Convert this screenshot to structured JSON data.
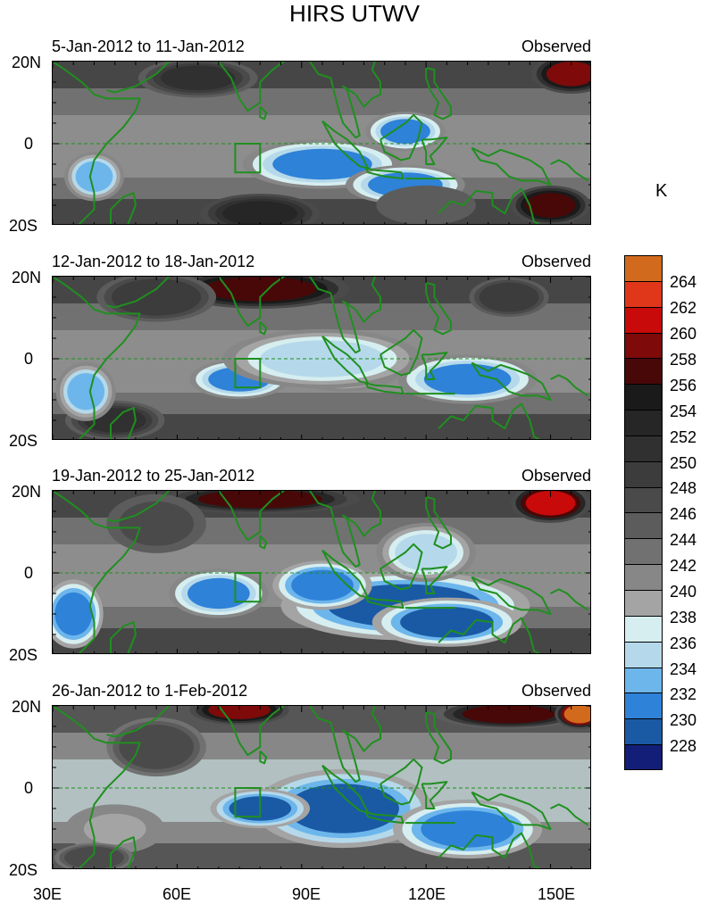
{
  "title": "HIRS UTWV",
  "unit": "K",
  "panels": [
    {
      "dates": "5-Jan-2012 to 11-Jan-2012",
      "tag": "Observed"
    },
    {
      "dates": "12-Jan-2012 to 18-Jan-2012",
      "tag": "Observed"
    },
    {
      "dates": "19-Jan-2012 to 25-Jan-2012",
      "tag": "Observed"
    },
    {
      "dates": "26-Jan-2012 to 1-Feb-2012",
      "tag": "Observed"
    }
  ],
  "lat_labels": {
    "north": "20N",
    "equator": "0",
    "south": "20S"
  },
  "lon_labels": [
    "30E",
    "60E",
    "90E",
    "120E",
    "150E"
  ],
  "colorbar": {
    "levels": [
      "264",
      "262",
      "260",
      "258",
      "256",
      "254",
      "252",
      "250",
      "248",
      "246",
      "244",
      "242",
      "240",
      "238",
      "236",
      "234",
      "232",
      "230",
      "228"
    ],
    "colors": [
      "#d26a1e",
      "#e0361a",
      "#c80a0a",
      "#7e0a0a",
      "#480808",
      "#1a1a1a",
      "#262626",
      "#303030",
      "#3c3c3c",
      "#4a4a4a",
      "#5c5c5c",
      "#717171",
      "#878787",
      "#a4a4a4",
      "#d6eef0",
      "#b5d9ea",
      "#6db6ec",
      "#2e82d8",
      "#1a5aa5",
      "#121e78"
    ]
  },
  "map": {
    "coastline_color": "#1f8f1f",
    "equator_line": "dashed",
    "lon_range": [
      30,
      160
    ],
    "lat_range": [
      -20,
      20
    ],
    "highlight_box": {
      "lon": [
        74,
        80
      ],
      "lat": [
        -7,
        0
      ]
    },
    "field_values": [
      {
        "id": 0,
        "blobs": [
          [
            95,
            -5,
            16,
            5,
            232
          ],
          [
            115,
            3,
            8,
            4,
            232
          ],
          [
            40,
            -8,
            6,
            5,
            233
          ],
          [
            150,
            -15,
            8,
            4,
            258
          ],
          [
            155,
            17,
            8,
            4,
            260
          ],
          [
            115,
            -10,
            12,
            4,
            231
          ],
          [
            65,
            16,
            12,
            4,
            252
          ],
          [
            80,
            -17,
            12,
            4,
            254
          ],
          [
            120,
            -15,
            10,
            4,
            245
          ]
        ],
        "base": 244
      },
      {
        "id": 1,
        "blobs": [
          [
            100,
            -2,
            12,
            5,
            233
          ],
          [
            130,
            -5,
            14,
            5,
            232
          ],
          [
            75,
            -5,
            10,
            4,
            232
          ],
          [
            95,
            0,
            20,
            6,
            236
          ],
          [
            80,
            17,
            18,
            4,
            258
          ],
          [
            55,
            15,
            12,
            5,
            250
          ],
          [
            45,
            -15,
            10,
            4,
            252
          ],
          [
            140,
            15,
            8,
            4,
            250
          ],
          [
            38,
            -8,
            6,
            6,
            233
          ]
        ],
        "base": 244
      },
      {
        "id": 2,
        "blobs": [
          [
            115,
            -8,
            25,
            7,
            230
          ],
          [
            95,
            -3,
            10,
            5,
            231
          ],
          [
            70,
            -5,
            10,
            5,
            232
          ],
          [
            125,
            -12,
            15,
            5,
            230
          ],
          [
            35,
            -10,
            6,
            7,
            231
          ],
          [
            150,
            17,
            8,
            4,
            262
          ],
          [
            80,
            18,
            20,
            3,
            257
          ],
          [
            55,
            12,
            10,
            6,
            248
          ],
          [
            120,
            5,
            10,
            6,
            236
          ]
        ],
        "base": 243
      },
      {
        "id": 3,
        "blobs": [
          [
            100,
            -5,
            18,
            8,
            229
          ],
          [
            130,
            -10,
            15,
            6,
            231
          ],
          [
            80,
            -5,
            10,
            4,
            230
          ],
          [
            75,
            19,
            10,
            3,
            260
          ],
          [
            140,
            18,
            15,
            3,
            258
          ],
          [
            157,
            18,
            5,
            3,
            264
          ],
          [
            55,
            10,
            10,
            6,
            248
          ],
          [
            45,
            -10,
            10,
            5,
            240
          ],
          [
            40,
            -17,
            8,
            3,
            248
          ]
        ],
        "base": 242
      }
    ]
  }
}
